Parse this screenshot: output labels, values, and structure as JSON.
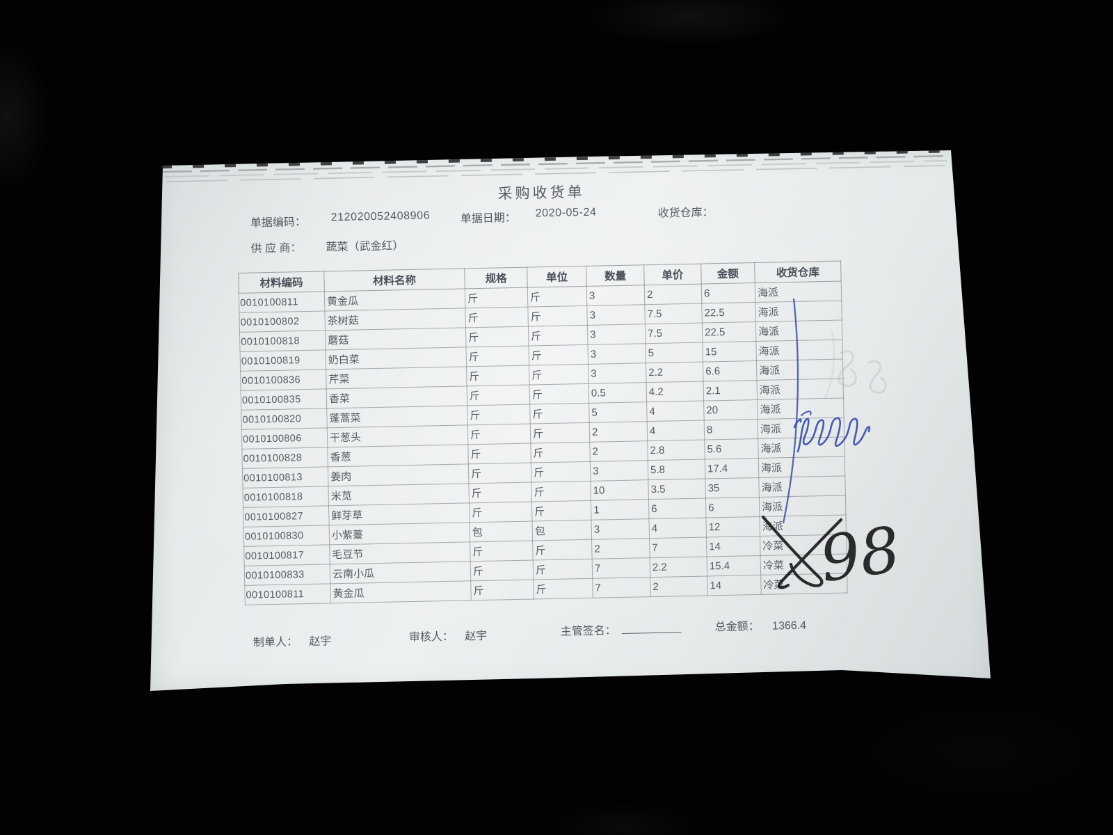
{
  "page": {
    "background": "#000000"
  },
  "document": {
    "title": "采购收货单",
    "header": {
      "doc_no_label": "单据编码：",
      "doc_no": "212020052408906",
      "date_label": "单据日期：",
      "date": "2020-05-24",
      "warehouse_label": "收货仓库：",
      "supplier_label": "供 应 商：",
      "supplier": "蔬菜（武金红）"
    },
    "table": {
      "headers": [
        "材料编码",
        "材料名称",
        "规格",
        "单位",
        "数量",
        "单价",
        "金额",
        "收货仓库"
      ],
      "rows": [
        [
          "0010100811",
          "黄金瓜",
          "斤",
          "斤",
          "3",
          "2",
          "6",
          "海派"
        ],
        [
          "0010100802",
          "茶树菇",
          "斤",
          "斤",
          "3",
          "7.5",
          "22.5",
          "海派"
        ],
        [
          "0010100818",
          "蘑菇",
          "斤",
          "斤",
          "3",
          "7.5",
          "22.5",
          "海派"
        ],
        [
          "0010100819",
          "奶白菜",
          "斤",
          "斤",
          "3",
          "5",
          "15",
          "海派"
        ],
        [
          "0010100836",
          "芹菜",
          "斤",
          "斤",
          "3",
          "2.2",
          "6.6",
          "海派"
        ],
        [
          "0010100835",
          "香菜",
          "斤",
          "斤",
          "0.5",
          "4.2",
          "2.1",
          "海派"
        ],
        [
          "0010100820",
          "蓬蒿菜",
          "斤",
          "斤",
          "5",
          "4",
          "20",
          "海派"
        ],
        [
          "0010100806",
          "干葱头",
          "斤",
          "斤",
          "2",
          "4",
          "8",
          "海派"
        ],
        [
          "0010100828",
          "香葱",
          "斤",
          "斤",
          "2",
          "2.8",
          "5.6",
          "海派"
        ],
        [
          "0010100813",
          "姜肉",
          "斤",
          "斤",
          "3",
          "5.8",
          "17.4",
          "海派"
        ],
        [
          "0010100818",
          "米苋",
          "斤",
          "斤",
          "10",
          "3.5",
          "35",
          "海派"
        ],
        [
          "0010100827",
          "鲜芽草",
          "斤",
          "斤",
          "1",
          "6",
          "6",
          "海派"
        ],
        [
          "0010100830",
          "小紫薹",
          "包",
          "包",
          "3",
          "4",
          "12",
          "海派"
        ],
        [
          "0010100817",
          "毛豆节",
          "斤",
          "斤",
          "2",
          "7",
          "14",
          "冷菜"
        ],
        [
          "0010100833",
          "云南小瓜",
          "斤",
          "斤",
          "7",
          "2.2",
          "15.4",
          "冷菜"
        ],
        [
          "0010100811",
          "黄金瓜",
          "斤",
          "斤",
          "7",
          "2",
          "14",
          "冷菜"
        ]
      ]
    },
    "footer": {
      "maker_label": "制单人：",
      "maker": "赵宇",
      "auditor_label": "审核人：",
      "auditor": "赵宇",
      "sign_label": "主管签名：",
      "total_label": "总金额：",
      "total": "1366.4"
    },
    "annotations": {
      "handwritten_number": "98"
    },
    "colors": {
      "paper": "#e6eaeb",
      "print_ink": "#4d545b",
      "grid_line": "#6d757b",
      "pen_blue": "#3c4fa5",
      "pen_black": "#17171a"
    }
  }
}
